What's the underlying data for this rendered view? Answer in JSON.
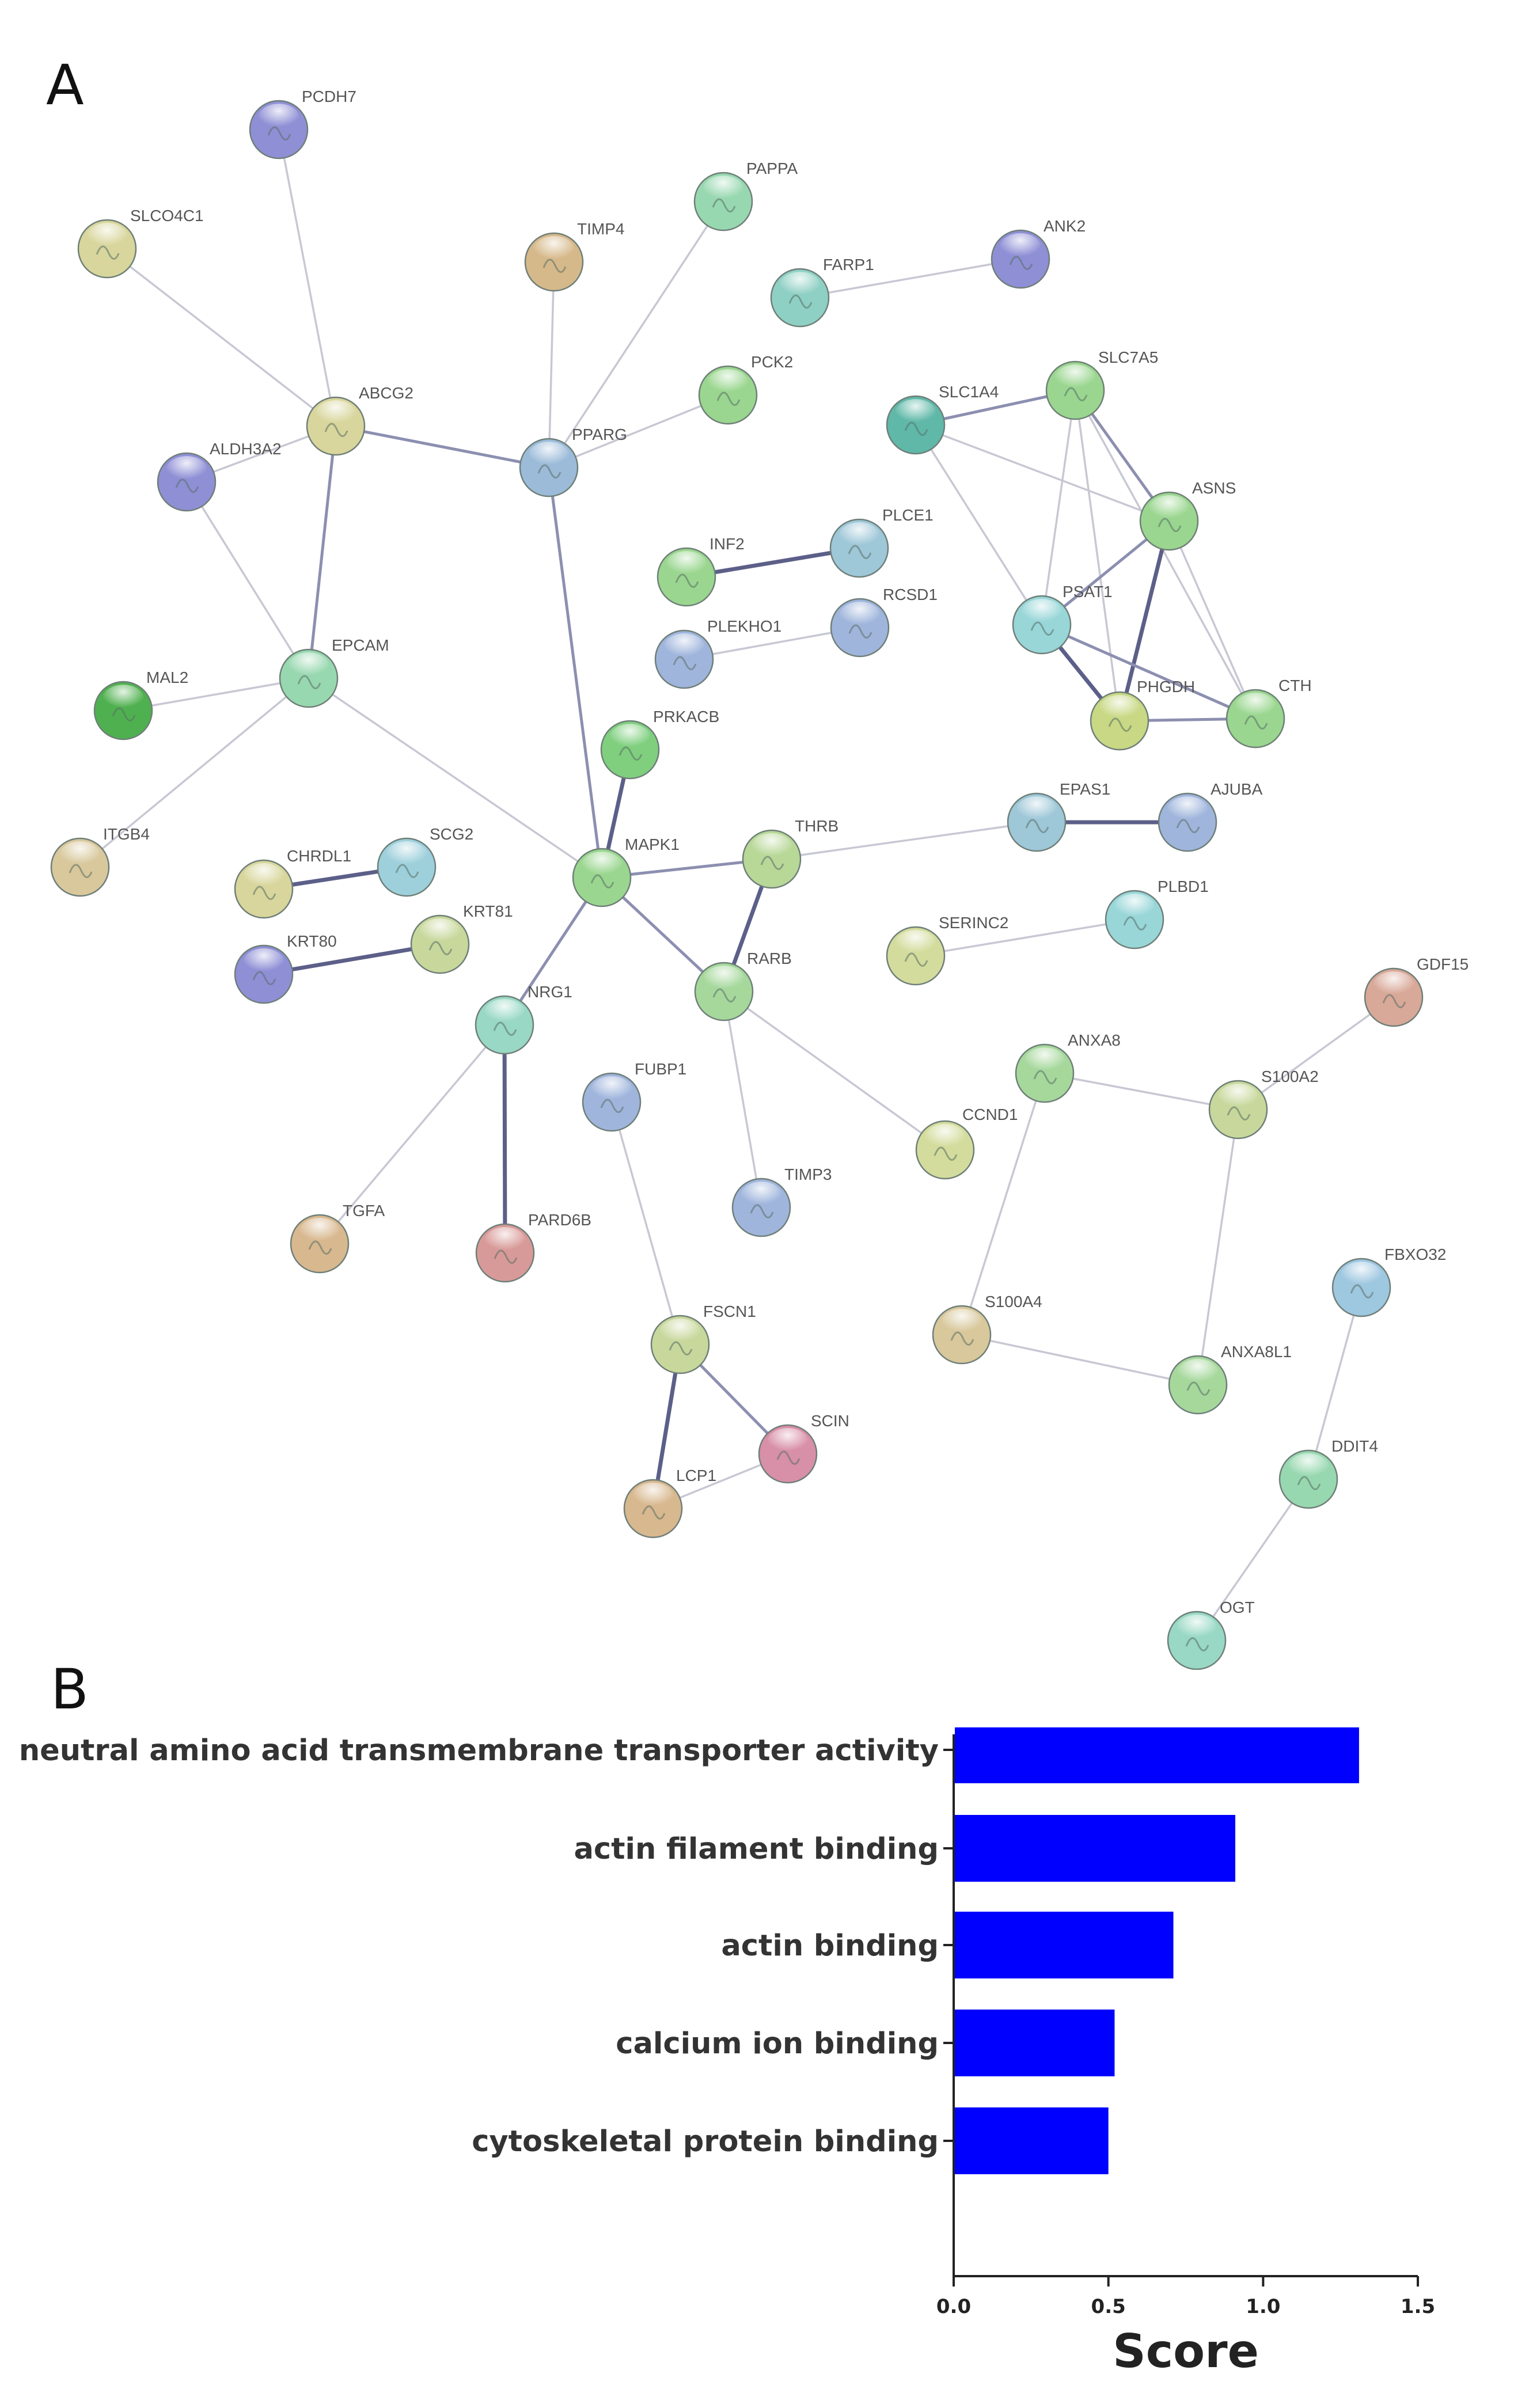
{
  "panels": {
    "a": "A",
    "b": "B"
  },
  "network": {
    "nodes": [
      {
        "id": "PCDH7",
        "label": "PCDH7",
        "color": "#8f8fd6"
      },
      {
        "id": "SLCO4C1",
        "label": "SLCO4C1",
        "color": "#d8d69c"
      },
      {
        "id": "TIMP4",
        "label": "TIMP4",
        "color": "#d6b98a"
      },
      {
        "id": "PAPPA",
        "label": "PAPPA",
        "color": "#98d8b0"
      },
      {
        "id": "ANK2",
        "label": "ANK2",
        "color": "#8f8fd6"
      },
      {
        "id": "FARP1",
        "label": "FARP1",
        "color": "#8fd0c4"
      },
      {
        "id": "ABCG2",
        "label": "ABCG2",
        "color": "#d8d69c"
      },
      {
        "id": "ALDH3A2",
        "label": "ALDH3A2",
        "color": "#8f8fd6"
      },
      {
        "id": "PPARG",
        "label": "PPARG",
        "color": "#9bbbd9"
      },
      {
        "id": "PCK2",
        "label": "PCK2",
        "color": "#9ad68f"
      },
      {
        "id": "SLC1A4",
        "label": "SLC1A4",
        "color": "#5fb8a8"
      },
      {
        "id": "SLC7A5",
        "label": "SLC7A5",
        "color": "#9ad68f"
      },
      {
        "id": "ASNS",
        "label": "ASNS",
        "color": "#9ad68f"
      },
      {
        "id": "PLCE1",
        "label": "PLCE1",
        "color": "#9ec7d8"
      },
      {
        "id": "INF2",
        "label": "INF2",
        "color": "#9ad68f"
      },
      {
        "id": "RCSD1",
        "label": "RCSD1",
        "color": "#9fb5dc"
      },
      {
        "id": "PLEKHO1",
        "label": "PLEKHO1",
        "color": "#9fb5dc"
      },
      {
        "id": "PSAT1",
        "label": "PSAT1",
        "color": "#98d6d8"
      },
      {
        "id": "EPCAM",
        "label": "EPCAM",
        "color": "#98d8b0"
      },
      {
        "id": "MAL2",
        "label": "MAL2",
        "color": "#4fb04f"
      },
      {
        "id": "PRKACB",
        "label": "PRKACB",
        "color": "#7fcf7f"
      },
      {
        "id": "PHGDH",
        "label": "PHGDH",
        "color": "#c8d884"
      },
      {
        "id": "CTH",
        "label": "CTH",
        "color": "#9ad68f"
      },
      {
        "id": "EPAS1",
        "label": "EPAS1",
        "color": "#9ec7d8"
      },
      {
        "id": "AJUBA",
        "label": "AJUBA",
        "color": "#9fb5dc"
      },
      {
        "id": "ITGB4",
        "label": "ITGB4",
        "color": "#d8c89c"
      },
      {
        "id": "CHRDL1",
        "label": "CHRDL1",
        "color": "#d8d69c"
      },
      {
        "id": "SCG2",
        "label": "SCG2",
        "color": "#9ed0dc"
      },
      {
        "id": "MAPK1",
        "label": "MAPK1",
        "color": "#9ad68f"
      },
      {
        "id": "THRB",
        "label": "THRB",
        "color": "#b8d898"
      },
      {
        "id": "KRT81",
        "label": "KRT81",
        "color": "#c8d89c"
      },
      {
        "id": "KRT80",
        "label": "KRT80",
        "color": "#8f8fd6"
      },
      {
        "id": "SERINC2",
        "label": "SERINC2",
        "color": "#d3dc9c"
      },
      {
        "id": "PLBD1",
        "label": "PLBD1",
        "color": "#98d6d8"
      },
      {
        "id": "GDF15",
        "label": "GDF15",
        "color": "#d8a898"
      },
      {
        "id": "RARB",
        "label": "RARB",
        "color": "#a6d89c"
      },
      {
        "id": "NRG1",
        "label": "NRG1",
        "color": "#98d8c4"
      },
      {
        "id": "FUBP1",
        "label": "FUBP1",
        "color": "#9fb5dc"
      },
      {
        "id": "ANXA8",
        "label": "ANXA8",
        "color": "#a6d89c"
      },
      {
        "id": "S100A2",
        "label": "S100A2",
        "color": "#c8d89c"
      },
      {
        "id": "CCND1",
        "label": "CCND1",
        "color": "#d3dc9c"
      },
      {
        "id": "TGFA",
        "label": "TGFA",
        "color": "#d8b88f"
      },
      {
        "id": "PARD6B",
        "label": "PARD6B",
        "color": "#d89a98"
      },
      {
        "id": "TIMP3",
        "label": "TIMP3",
        "color": "#9fb5dc"
      },
      {
        "id": "FBXO32",
        "label": "FBXO32",
        "color": "#9ec7e0"
      },
      {
        "id": "S100A4",
        "label": "S100A4",
        "color": "#d8c89c"
      },
      {
        "id": "FSCN1",
        "label": "FSCN1",
        "color": "#c8d89c"
      },
      {
        "id": "ANXA8L1",
        "label": "ANXA8L1",
        "color": "#a6d89c"
      },
      {
        "id": "SCIN",
        "label": "SCIN",
        "color": "#d88fa8"
      },
      {
        "id": "DDIT4",
        "label": "DDIT4",
        "color": "#98d8b0"
      },
      {
        "id": "LCP1",
        "label": "LCP1",
        "color": "#d8b88f"
      },
      {
        "id": "OGT",
        "label": "OGT",
        "color": "#98d8c4"
      }
    ],
    "edges": [
      [
        "PCDH7",
        "ABCG2",
        1
      ],
      [
        "SLCO4C1",
        "ABCG2",
        1
      ],
      [
        "ABCG2",
        "PPARG",
        2
      ],
      [
        "ALDH3A2",
        "ABCG2",
        1
      ],
      [
        "ALDH3A2",
        "EPCAM",
        1
      ],
      [
        "ABCG2",
        "EPCAM",
        2
      ],
      [
        "TIMP4",
        "PPARG",
        1
      ],
      [
        "PAPPA",
        "PPARG",
        1
      ],
      [
        "PCK2",
        "PPARG",
        1
      ],
      [
        "PPARG",
        "MAPK1",
        2
      ],
      [
        "FARP1",
        "ANK2",
        1
      ],
      [
        "INF2",
        "PLCE1",
        3
      ],
      [
        "PLEKHO1",
        "RCSD1",
        1
      ],
      [
        "EPCAM",
        "MAL2",
        1
      ],
      [
        "EPCAM",
        "ITGB4",
        1
      ],
      [
        "EPCAM",
        "MAPK1",
        1
      ],
      [
        "PRKACB",
        "MAPK1",
        3
      ],
      [
        "MAPK1",
        "THRB",
        2
      ],
      [
        "MAPK1",
        "RARB",
        2
      ],
      [
        "MAPK1",
        "NRG1",
        2
      ],
      [
        "THRB",
        "RARB",
        3
      ],
      [
        "THRB",
        "EPAS1",
        1
      ],
      [
        "EPAS1",
        "AJUBA",
        3
      ],
      [
        "RARB",
        "TIMP3",
        1
      ],
      [
        "RARB",
        "CCND1",
        1
      ],
      [
        "CHRDL1",
        "SCG2",
        3
      ],
      [
        "KRT80",
        "KRT81",
        3
      ],
      [
        "NRG1",
        "PARD6B",
        3
      ],
      [
        "NRG1",
        "TGFA",
        1
      ],
      [
        "FUBP1",
        "FSCN1",
        1
      ],
      [
        "FSCN1",
        "LCP1",
        3
      ],
      [
        "FSCN1",
        "SCIN",
        2
      ],
      [
        "SCIN",
        "LCP1",
        1
      ],
      [
        "SERINC2",
        "PLBD1",
        1
      ],
      [
        "ANXA8",
        "S100A2",
        1
      ],
      [
        "ANXA8",
        "S100A4",
        1
      ],
      [
        "S100A2",
        "GDF15",
        1
      ],
      [
        "S100A2",
        "ANXA8L1",
        1
      ],
      [
        "S100A4",
        "ANXA8L1",
        1
      ],
      [
        "FBXO32",
        "DDIT4",
        1
      ],
      [
        "DDIT4",
        "OGT",
        1
      ],
      [
        "SLC1A4",
        "SLC7A5",
        2
      ],
      [
        "SLC1A4",
        "ASNS",
        1
      ],
      [
        "SLC1A4",
        "PSAT1",
        1
      ],
      [
        "SLC7A5",
        "ASNS",
        2
      ],
      [
        "SLC7A5",
        "PSAT1",
        1
      ],
      [
        "SLC7A5",
        "PHGDH",
        1
      ],
      [
        "SLC7A5",
        "CTH",
        1
      ],
      [
        "ASNS",
        "PSAT1",
        2
      ],
      [
        "ASNS",
        "PHGDH",
        3
      ],
      [
        "ASNS",
        "CTH",
        1
      ],
      [
        "PSAT1",
        "PHGDH",
        3
      ],
      [
        "PSAT1",
        "CTH",
        2
      ],
      [
        "PHGDH",
        "CTH",
        2
      ]
    ]
  },
  "chart_data": {
    "type": "bar",
    "orientation": "horizontal",
    "categories": [
      "neutral amino acid transmembrane transporter activity",
      "actin filament binding",
      "actin binding",
      "calcium ion binding",
      "cytoskeletal protein binding"
    ],
    "values": [
      1.31,
      0.91,
      0.71,
      0.52,
      0.5
    ],
    "xlabel": "Score",
    "ylabel": "",
    "xlim": [
      0,
      1.5
    ],
    "ticks": [
      "0.0",
      "0.5",
      "1.0",
      "1.5"
    ],
    "bar_color": "#0000ff",
    "grid": false,
    "legend": "none"
  }
}
